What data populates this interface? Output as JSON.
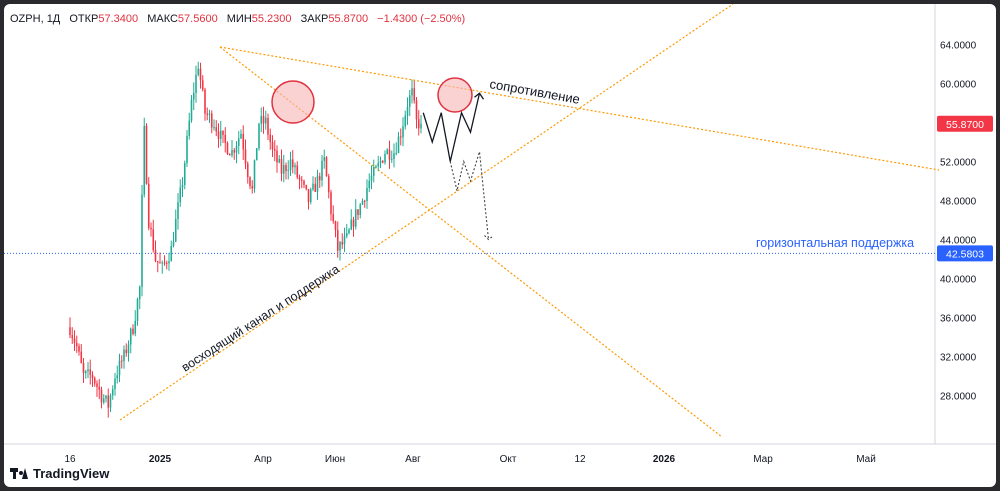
{
  "header": {
    "ticker": "OZPH",
    "interval": "1Д",
    "open_label": "ОТКР",
    "open_value": "57.3400",
    "high_label": "МАКС",
    "high_value": "57.5600",
    "low_label": "МИН",
    "low_value": "55.2300",
    "close_label": "ЗАКР",
    "close_value": "55.8700",
    "change": "−1.4300 (−2.50%)"
  },
  "brand": "TradingView",
  "colors": {
    "up": "#22ab94",
    "down": "#f23645",
    "level_line": "#2962ff",
    "trend_lines": "#ff9800",
    "price_badge": "#f23645",
    "support_badge": "#2962ff",
    "circle_fill": "#f7b4b4",
    "circle_stroke": "#e0323f"
  },
  "chart_data": {
    "type": "candlestick",
    "y_ticks": [
      "64.0000",
      "60.0000",
      "56.0000",
      "52.0000",
      "48.0000",
      "44.0000",
      "40.0000",
      "36.0000",
      "32.0000",
      "28.0000"
    ],
    "ylim": [
      24,
      66
    ],
    "x_ticks": [
      "16",
      "2025",
      "Апр",
      "Июн",
      "Авг",
      "Окт",
      "12",
      "2026",
      "Мар",
      "Май"
    ],
    "last_price": "55.8700",
    "support_level": "42.5803",
    "annotations": {
      "resistance": "сопротивление",
      "channel": "восходящий канал и поддержка",
      "horizontal_support": "горизонтальная поддержка"
    },
    "path_anchors": [
      {
        "t": 0,
        "p": 35
      },
      {
        "t": 3,
        "p": 33
      },
      {
        "t": 6,
        "p": 30
      },
      {
        "t": 10,
        "p": 30
      },
      {
        "t": 14,
        "p": 28
      },
      {
        "t": 17,
        "p": 27
      },
      {
        "t": 20,
        "p": 30
      },
      {
        "t": 24,
        "p": 32
      },
      {
        "t": 28,
        "p": 35
      },
      {
        "t": 31,
        "p": 39
      },
      {
        "t": 32,
        "p": 48
      },
      {
        "t": 33,
        "p": 55
      },
      {
        "t": 35,
        "p": 46
      },
      {
        "t": 38,
        "p": 42
      },
      {
        "t": 41,
        "p": 41
      },
      {
        "t": 45,
        "p": 43
      },
      {
        "t": 50,
        "p": 50
      },
      {
        "t": 54,
        "p": 58
      },
      {
        "t": 57,
        "p": 62
      },
      {
        "t": 60,
        "p": 57
      },
      {
        "t": 64,
        "p": 56
      },
      {
        "t": 68,
        "p": 54
      },
      {
        "t": 72,
        "p": 53
      },
      {
        "t": 76,
        "p": 55
      },
      {
        "t": 79,
        "p": 51
      },
      {
        "t": 81,
        "p": 49
      },
      {
        "t": 84,
        "p": 56
      },
      {
        "t": 87,
        "p": 56
      },
      {
        "t": 90,
        "p": 53
      },
      {
        "t": 94,
        "p": 51
      },
      {
        "t": 98,
        "p": 52
      },
      {
        "t": 102,
        "p": 50
      },
      {
        "t": 106,
        "p": 48
      },
      {
        "t": 110,
        "p": 50
      },
      {
        "t": 113,
        "p": 52
      },
      {
        "t": 116,
        "p": 47
      },
      {
        "t": 119,
        "p": 43
      },
      {
        "t": 123,
        "p": 44
      },
      {
        "t": 126,
        "p": 46
      },
      {
        "t": 130,
        "p": 48
      },
      {
        "t": 133,
        "p": 50
      },
      {
        "t": 136,
        "p": 51
      },
      {
        "t": 140,
        "p": 53
      },
      {
        "t": 144,
        "p": 53
      },
      {
        "t": 147,
        "p": 55
      },
      {
        "t": 150,
        "p": 58
      },
      {
        "t": 152,
        "p": 59
      },
      {
        "t": 154,
        "p": 56
      },
      {
        "t": 156,
        "p": 55.87
      }
    ],
    "forecast_solid": [
      [
        157,
        57
      ],
      [
        161,
        54
      ],
      [
        165,
        57
      ],
      [
        169,
        52
      ],
      [
        174,
        57
      ],
      [
        178,
        55
      ],
      [
        182,
        59
      ]
    ],
    "forecast_dotted": [
      [
        169,
        52
      ],
      [
        172,
        49
      ],
      [
        175,
        52
      ],
      [
        178,
        50
      ],
      [
        182,
        53
      ],
      [
        186,
        44
      ]
    ]
  }
}
